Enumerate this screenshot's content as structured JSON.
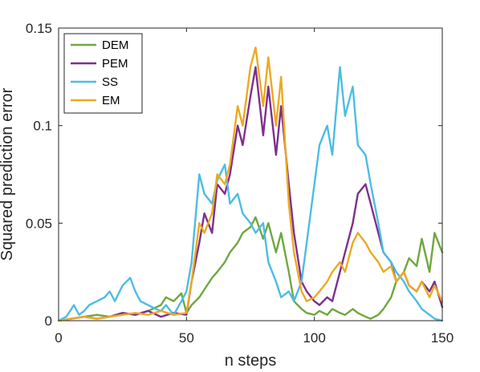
{
  "chart_data": {
    "type": "line",
    "title": "",
    "xlabel": "n steps",
    "ylabel": "Squared prediction error",
    "xlim": [
      0,
      150
    ],
    "ylim": [
      0,
      0.15
    ],
    "xticks": [
      "0",
      "50",
      "100",
      "150"
    ],
    "yticks": [
      "0",
      "0.05",
      "0.1",
      "0.15"
    ],
    "grid": false,
    "legend_position": "top-left",
    "series": [
      {
        "name": "DEM",
        "color": "#6ea840",
        "x": [
          0,
          5,
          10,
          15,
          20,
          25,
          30,
          35,
          40,
          42,
          45,
          48,
          50,
          52,
          55,
          57,
          60,
          62,
          65,
          67,
          70,
          72,
          75,
          77,
          80,
          82,
          85,
          87,
          90,
          92,
          95,
          97,
          100,
          102,
          105,
          107,
          110,
          112,
          115,
          117,
          120,
          122,
          125,
          127,
          130,
          132,
          135,
          137,
          140,
          142,
          145,
          147,
          150
        ],
        "y": [
          0,
          0.001,
          0.002,
          0.003,
          0.002,
          0.004,
          0.003,
          0.005,
          0.008,
          0.012,
          0.01,
          0.014,
          0.004,
          0.008,
          0.012,
          0.016,
          0.022,
          0.025,
          0.03,
          0.035,
          0.04,
          0.045,
          0.048,
          0.053,
          0.042,
          0.05,
          0.035,
          0.045,
          0.025,
          0.01,
          0.006,
          0.004,
          0.003,
          0.005,
          0.003,
          0.006,
          0.004,
          0.003,
          0.006,
          0.004,
          0.002,
          0.001,
          0.003,
          0.006,
          0.012,
          0.02,
          0.025,
          0.032,
          0.028,
          0.042,
          0.025,
          0.045,
          0.035
        ]
      },
      {
        "name": "PEM",
        "color": "#7e2f8e",
        "x": [
          0,
          5,
          10,
          15,
          20,
          25,
          30,
          35,
          40,
          45,
          50,
          52,
          55,
          57,
          60,
          62,
          65,
          67,
          70,
          72,
          75,
          77,
          80,
          82,
          85,
          87,
          90,
          92,
          95,
          97,
          100,
          102,
          105,
          107,
          110,
          112,
          115,
          117,
          120,
          122,
          125,
          127,
          130,
          132,
          135,
          137,
          140,
          142,
          145,
          147,
          150
        ],
        "y": [
          0,
          0.001,
          0.002,
          0.001,
          0.002,
          0.004,
          0.003,
          0.005,
          0.002,
          0.004,
          0.003,
          0.02,
          0.04,
          0.055,
          0.045,
          0.07,
          0.065,
          0.075,
          0.1,
          0.09,
          0.115,
          0.13,
          0.095,
          0.12,
          0.085,
          0.11,
          0.07,
          0.045,
          0.02,
          0.015,
          0.01,
          0.008,
          0.012,
          0.01,
          0.025,
          0.035,
          0.05,
          0.065,
          0.07,
          0.06,
          0.045,
          0.035,
          0.03,
          0.02,
          0.025,
          0.018,
          0.015,
          0.02,
          0.015,
          0.02,
          0.007
        ]
      },
      {
        "name": "SS",
        "color": "#4cbde3",
        "x": [
          0,
          3,
          6,
          8,
          10,
          12,
          15,
          18,
          20,
          22,
          25,
          28,
          30,
          32,
          35,
          38,
          40,
          42,
          45,
          48,
          50,
          52,
          55,
          57,
          60,
          62,
          65,
          67,
          70,
          72,
          75,
          77,
          80,
          82,
          85,
          87,
          90,
          92,
          95,
          97,
          100,
          102,
          105,
          107,
          110,
          112,
          115,
          117,
          120,
          122,
          125,
          127,
          130,
          132,
          135,
          137,
          140,
          142,
          145,
          147,
          150
        ],
        "y": [
          0,
          0.002,
          0.008,
          0.003,
          0.005,
          0.008,
          0.01,
          0.012,
          0.015,
          0.01,
          0.018,
          0.022,
          0.015,
          0.01,
          0.008,
          0.006,
          0.005,
          0.008,
          0.003,
          0.01,
          0.015,
          0.03,
          0.075,
          0.065,
          0.06,
          0.072,
          0.08,
          0.06,
          0.065,
          0.055,
          0.05,
          0.045,
          0.05,
          0.03,
          0.02,
          0.012,
          0.015,
          0.01,
          0.02,
          0.04,
          0.07,
          0.09,
          0.1,
          0.085,
          0.13,
          0.105,
          0.12,
          0.09,
          0.085,
          0.07,
          0.05,
          0.035,
          0.03,
          0.025,
          0.02,
          0.015,
          0.01,
          0.006,
          0.003,
          0.001,
          0
        ]
      },
      {
        "name": "EM",
        "color": "#ecaa21",
        "x": [
          0,
          5,
          10,
          15,
          20,
          25,
          30,
          35,
          40,
          45,
          50,
          52,
          55,
          57,
          60,
          62,
          65,
          67,
          70,
          72,
          75,
          77,
          80,
          82,
          85,
          87,
          90,
          92,
          95,
          97,
          100,
          102,
          105,
          107,
          110,
          112,
          115,
          117,
          120,
          122,
          125,
          127,
          130,
          132,
          135,
          137,
          140,
          142,
          145,
          147,
          150
        ],
        "y": [
          0,
          0.001,
          0.002,
          0.001,
          0.002,
          0.003,
          0.004,
          0.003,
          0.005,
          0.003,
          0.004,
          0.02,
          0.05,
          0.045,
          0.055,
          0.075,
          0.07,
          0.08,
          0.11,
          0.1,
          0.13,
          0.14,
          0.11,
          0.135,
          0.1,
          0.125,
          0.06,
          0.035,
          0.015,
          0.01,
          0.012,
          0.015,
          0.02,
          0.025,
          0.03,
          0.025,
          0.04,
          0.045,
          0.04,
          0.035,
          0.03,
          0.025,
          0.028,
          0.02,
          0.025,
          0.018,
          0.015,
          0.02,
          0.012,
          0.018,
          0.01
        ]
      }
    ]
  }
}
